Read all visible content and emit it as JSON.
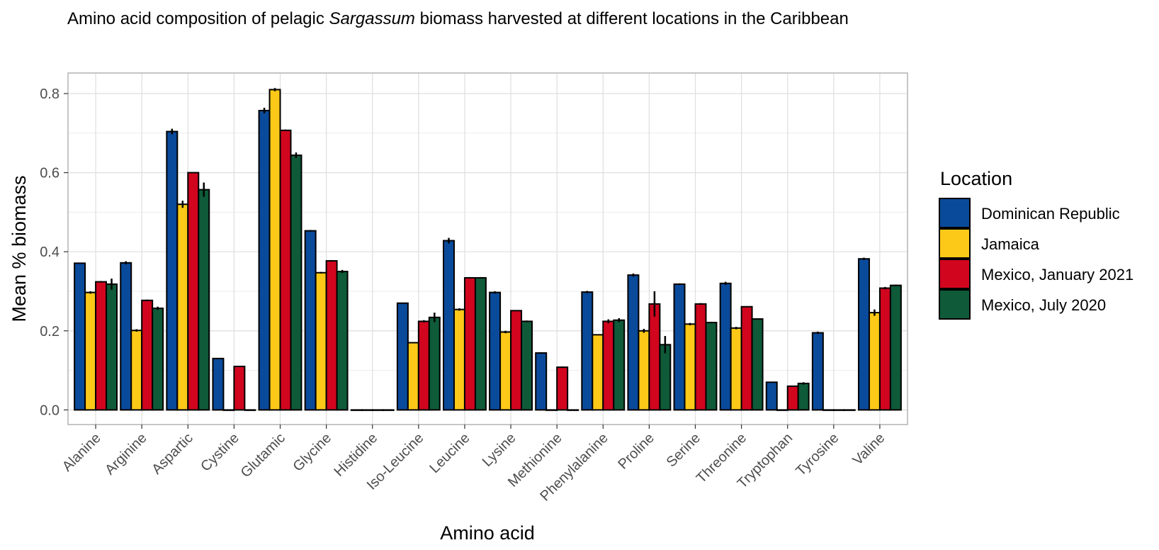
{
  "chart_data": {
    "type": "bar",
    "title_parts": [
      "Amino acid composition of pelagic ",
      "Sargassum",
      " biomass harvested at different locations in the Caribbean"
    ],
    "xlabel": "Amino acid",
    "ylabel": "Mean % biomass",
    "ylim": [
      -0.037,
      0.852
    ],
    "yticks": [
      0.0,
      0.2,
      0.4,
      0.6,
      0.8
    ],
    "ytick_labels": [
      "0.0",
      "0.2",
      "0.4",
      "0.6",
      "0.8"
    ],
    "grid": true,
    "legend_position": "right",
    "legend_title": "Location",
    "categories": [
      "Alanine",
      "Arginine",
      "Aspartic",
      "Cystine",
      "Glutamic",
      "Glycine",
      "Histidine",
      "Iso-Leucine",
      "Leucine",
      "Lysine",
      "Methionine",
      "Phenylalanine",
      "Proline",
      "Serine",
      "Threonine",
      "Tryptophan",
      "Tyrosine",
      "Valine"
    ],
    "series": [
      {
        "name": "Dominican Republic",
        "color": "#0a4a9a",
        "values": [
          0.371,
          0.372,
          0.704,
          0.13,
          0.757,
          0.453,
          0.0,
          0.27,
          0.428,
          0.297,
          0.144,
          0.298,
          0.341,
          0.318,
          0.32,
          0.07,
          0.195,
          0.382
        ],
        "errors": [
          0.0,
          0.004,
          0.007,
          0.0,
          0.007,
          0.002,
          0.0,
          0.0,
          0.007,
          0.003,
          0.002,
          0.003,
          0.004,
          0.002,
          0.004,
          0.0,
          0.003,
          0.003
        ]
      },
      {
        "name": "Jamaica",
        "color": "#fcc918",
        "values": [
          0.297,
          0.201,
          0.52,
          0.0,
          0.81,
          0.347,
          0.0,
          0.17,
          0.254,
          0.197,
          0.0,
          0.19,
          0.2,
          0.217,
          0.207,
          0.0,
          0.0,
          0.246
        ],
        "errors": [
          0.003,
          0.003,
          0.009,
          0.0,
          0.004,
          0.002,
          0.0,
          0.0,
          0.003,
          0.003,
          0.0,
          0.0,
          0.005,
          0.003,
          0.003,
          0.0,
          0.0,
          0.008
        ]
      },
      {
        "name": "Mexico, January 2021",
        "color": "#d1051e",
        "values": [
          0.324,
          0.277,
          0.6,
          0.11,
          0.707,
          0.377,
          0.0,
          0.224,
          0.334,
          0.251,
          0.108,
          0.224,
          0.268,
          0.268,
          0.261,
          0.06,
          0.0,
          0.308
        ],
        "errors": [
          0.002,
          0.002,
          0.0,
          0.0,
          0.002,
          0.002,
          0.0,
          0.003,
          0.002,
          0.0,
          0.002,
          0.005,
          0.032,
          0.002,
          0.0,
          0.0,
          0.0,
          0.003
        ]
      },
      {
        "name": "Mexico, July 2020",
        "color": "#0e5a39",
        "values": [
          0.318,
          0.257,
          0.557,
          0.0,
          0.644,
          0.35,
          0.0,
          0.234,
          0.334,
          0.224,
          0.0,
          0.227,
          0.165,
          0.221,
          0.23,
          0.067,
          0.0,
          0.315
        ],
        "errors": [
          0.014,
          0.004,
          0.018,
          0.0,
          0.007,
          0.004,
          0.0,
          0.012,
          0.002,
          0.002,
          0.0,
          0.005,
          0.022,
          0.0,
          0.0,
          0.003,
          0.0,
          0.002
        ]
      }
    ]
  }
}
